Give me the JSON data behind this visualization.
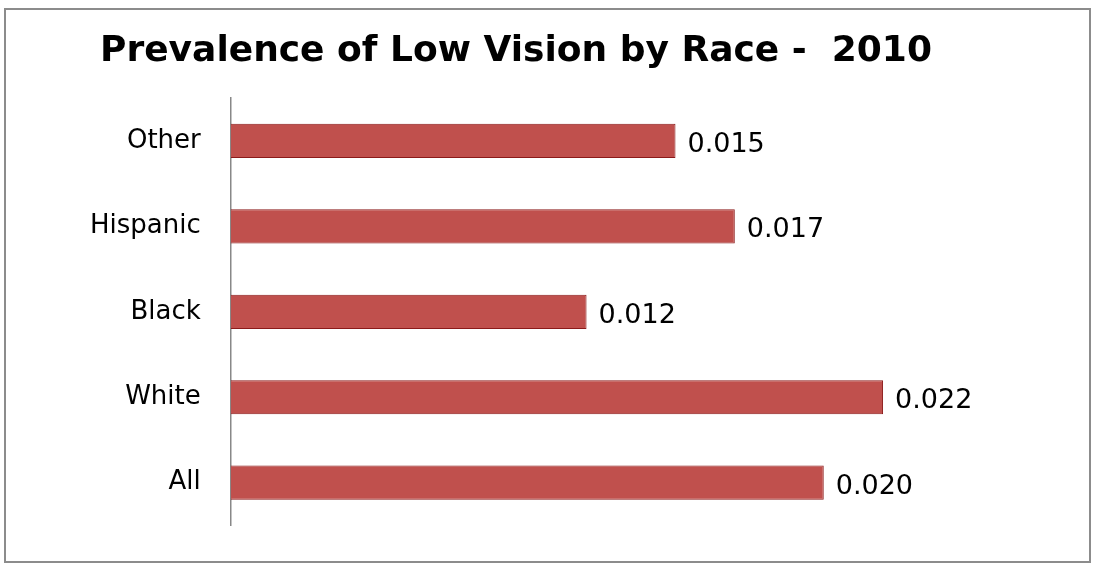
{
  "chart_data": {
    "type": "bar",
    "orientation": "horizontal",
    "title": "Prevalence of Low Vision by Race -  2010",
    "categories": [
      "Other",
      "Hispanic",
      "Black",
      "White",
      "All"
    ],
    "values": [
      0.015,
      0.017,
      0.012,
      0.022,
      0.02
    ],
    "value_labels": [
      "0.015",
      "0.017",
      "0.012",
      "0.022",
      "0.020"
    ],
    "color": "#c0504d",
    "tick_labels": "y",
    "grid": false,
    "legend": false
  }
}
